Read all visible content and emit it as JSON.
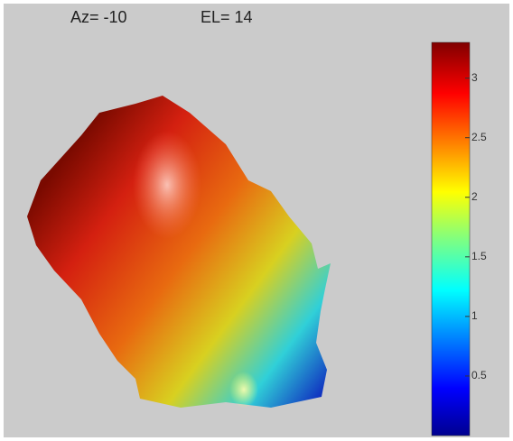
{
  "chart_data": {
    "type": "surface",
    "annotations": [
      "Az= -10",
      "EL= 14"
    ],
    "colorbar": {
      "clim": [
        0,
        3.3
      ],
      "ticks": [
        0.5,
        1,
        1.5,
        2,
        2.5,
        3
      ],
      "colormap": "jet"
    }
  }
}
